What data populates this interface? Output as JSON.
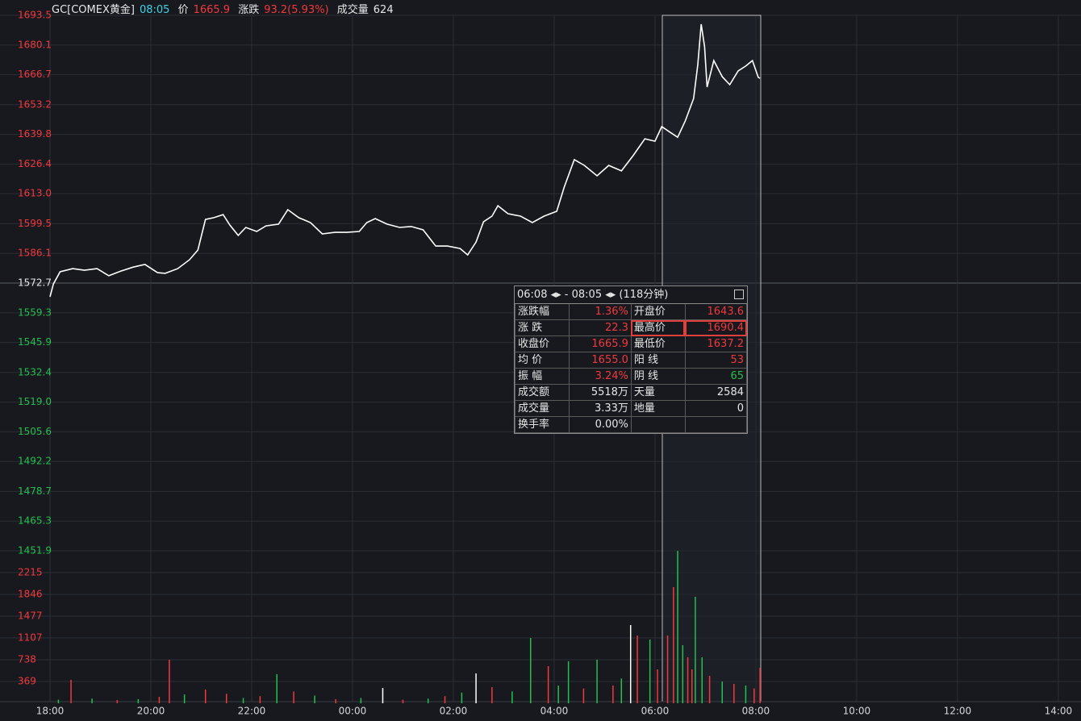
{
  "header": {
    "symbol": "GC[COMEX黄金]",
    "time": "08:05",
    "price_label": "价",
    "price": "1665.9",
    "change_label": "涨跌",
    "change": "93.2(5.93%)",
    "volume_label": "成交量",
    "volume": "624"
  },
  "tooltip": {
    "start": "06:08",
    "end": "- 08:05",
    "duration": "(118分钟)",
    "rows": [
      [
        "涨跌幅",
        "1.36%",
        "开盘价",
        "1643.6"
      ],
      [
        "涨 跌",
        "22.3",
        "最高价",
        "1690.4"
      ],
      [
        "收盘价",
        "1665.9",
        "最低价",
        "1637.2"
      ],
      [
        "均 价",
        "1655.0",
        "阳 线",
        "53"
      ],
      [
        "振 幅",
        "3.24%",
        "阴 线",
        "65"
      ],
      [
        "成交额",
        "5518万",
        "天量",
        "2584"
      ],
      [
        "成交量",
        "3.33万",
        "地量",
        "0"
      ],
      [
        "换手率",
        "0.00%"
      ]
    ]
  },
  "chart_data": [
    {
      "type": "line",
      "color": "#ffffff",
      "xlim": [
        "18:00",
        "14:27"
      ],
      "x": [
        "18:00",
        "18:04",
        "18:12",
        "18:27",
        "18:41",
        "18:56",
        "19:10",
        "19:24",
        "19:39",
        "19:53",
        "20:08",
        "20:17",
        "20:32",
        "20:46",
        "20:56",
        "21:05",
        "21:15",
        "21:26",
        "21:34",
        "21:44",
        "21:53",
        "22:06",
        "22:17",
        "22:32",
        "22:43",
        "22:56",
        "23:10",
        "23:24",
        "23:39",
        "23:53",
        "00:08",
        "00:17",
        "00:27",
        "00:41",
        "00:56",
        "01:10",
        "01:24",
        "01:39",
        "01:53",
        "02:08",
        "02:17",
        "02:27",
        "02:36",
        "02:46",
        "02:53",
        "03:05",
        "03:20",
        "03:34",
        "03:48",
        "04:03",
        "04:12",
        "04:24",
        "04:36",
        "04:51",
        "05:05",
        "05:20",
        "05:34",
        "05:48",
        "06:00",
        "06:08",
        "06:17",
        "06:27",
        "06:36",
        "06:46",
        "06:51",
        "06:55",
        "06:59",
        "07:02",
        "07:10",
        "07:20",
        "07:29",
        "07:39",
        "07:48",
        "07:56",
        "08:03",
        "08:05"
      ],
      "values": [
        1566.5,
        1572.3,
        1577.8,
        1579.2,
        1578.5,
        1579.2,
        1576.0,
        1578.1,
        1579.9,
        1581.1,
        1577.4,
        1577.1,
        1579.2,
        1583.2,
        1587.6,
        1601.4,
        1602.2,
        1603.6,
        1598.9,
        1594.2,
        1597.8,
        1596.0,
        1598.5,
        1599.3,
        1605.8,
        1602.2,
        1600.0,
        1594.9,
        1595.6,
        1595.6,
        1596.0,
        1600.0,
        1601.8,
        1599.3,
        1597.8,
        1598.2,
        1596.7,
        1589.4,
        1589.4,
        1588.3,
        1585.4,
        1591.2,
        1600.4,
        1602.9,
        1607.6,
        1604.0,
        1602.9,
        1600.0,
        1602.9,
        1605.1,
        1616.0,
        1628.4,
        1625.8,
        1621.1,
        1625.8,
        1623.3,
        1630.2,
        1637.8,
        1636.7,
        1643.3,
        1641.0,
        1638.5,
        1645.8,
        1656.0,
        1671.3,
        1689.5,
        1679.3,
        1661.1,
        1673.1,
        1665.8,
        1662.2,
        1668.4,
        1670.6,
        1673.1,
        1665.5,
        1665.1
      ],
      "ylim": [
        1451.9,
        1693.5
      ],
      "yticks": [
        1693.5,
        1680.1,
        1666.7,
        1653.2,
        1639.8,
        1626.4,
        {
          "value": 1613.0,
          "label": "1613.0"
        },
        1599.5,
        1586.1,
        1572.7,
        1559.3,
        1545.9,
        1532.4,
        {
          "value": 1519.0,
          "label": "1519.0"
        },
        1505.6,
        1492.2,
        1478.7,
        1465.3,
        1451.9
      ],
      "ytick_colors": [
        "#f2383c",
        "#f2383c",
        "#f2383c",
        "#f2383c",
        "#f2383c",
        "#f2383c",
        "#f2383c",
        "#f2383c",
        "#f2383c",
        "#e6e6e6",
        "#22c04e",
        "#22c04e",
        "#22c04e",
        "#22c04e",
        "#22c04e",
        "#22c04e",
        "#22c04e",
        "#22c04e",
        "#22c04e"
      ],
      "grid": true
    },
    {
      "type": "bar",
      "xlim": [
        "18:00",
        "14:27"
      ],
      "xticks": [
        "18:00",
        "20:00",
        "22:00",
        "00:00",
        "02:00",
        "04:00",
        "06:00",
        "08:00",
        "10:00",
        "12:00",
        "14:00"
      ],
      "x": [
        "18:10",
        "18:25",
        "18:50",
        "19:20",
        "19:45",
        "20:10",
        "20:22",
        "20:40",
        "21:05",
        "21:30",
        "21:50",
        "22:10",
        "22:30",
        "22:50",
        "23:15",
        "23:40",
        "00:10",
        "00:36",
        "01:00",
        "01:30",
        "01:50",
        "02:10",
        "02:27",
        "02:46",
        "03:10",
        "03:32",
        "03:53",
        "04:05",
        "04:17",
        "04:35",
        "04:51",
        "05:10",
        "05:20",
        "05:31",
        "05:39",
        "05:54",
        "06:03",
        "06:15",
        "06:22",
        "06:27",
        "06:33",
        "06:39",
        "06:44",
        "06:48",
        "06:56",
        "07:05",
        "07:20",
        "07:34",
        "07:48",
        "07:58",
        "08:05"
      ],
      "values": [
        60,
        396,
        80,
        55,
        70,
        110,
        738,
        150,
        232,
        160,
        90,
        120,
        492,
        200,
        130,
        70,
        90,
        260,
        60,
        80,
        120,
        180,
        506,
        273,
        200,
        1107,
        629,
        300,
        711,
        250,
        738,
        301,
        420,
        1326,
        1148,
        1080,
        574,
        1148,
        1969,
        2584,
        984,
        779,
        574,
        1805,
        779,
        465,
        369,
        328,
        301,
        250,
        601
      ],
      "colors": [
        "#22c04e",
        "#f2383c",
        "#22c04e",
        "#f2383c",
        "#22c04e",
        "#f2383c",
        "#f2383c",
        "#22c04e",
        "#f2383c",
        "#f2383c",
        "#22c04e",
        "#f2383c",
        "#22c04e",
        "#f2383c",
        "#22c04e",
        "#f2383c",
        "#22c04e",
        "#ffffff",
        "#f2383c",
        "#22c04e",
        "#f2383c",
        "#22c04e",
        "#ffffff",
        "#f2383c",
        "#22c04e",
        "#22c04e",
        "#f2383c",
        "#22c04e",
        "#22c04e",
        "#f2383c",
        "#22c04e",
        "#f2383c",
        "#22c04e",
        "#ffffff",
        "#f2383c",
        "#22c04e",
        "#f2383c",
        "#f2383c",
        "#f2383c",
        "#22c04e",
        "#22c04e",
        "#f2383c",
        "#f2383c",
        "#22c04e",
        "#22c04e",
        "#f2383c",
        "#22c04e",
        "#f2383c",
        "#22c04e",
        "#f2383c",
        "#f2383c"
      ],
      "ylim": [
        0,
        2584
      ],
      "yticks": [
        2215,
        1846,
        1477,
        1107,
        738,
        369
      ],
      "tick_color": "#f2383c",
      "grid": true
    }
  ]
}
